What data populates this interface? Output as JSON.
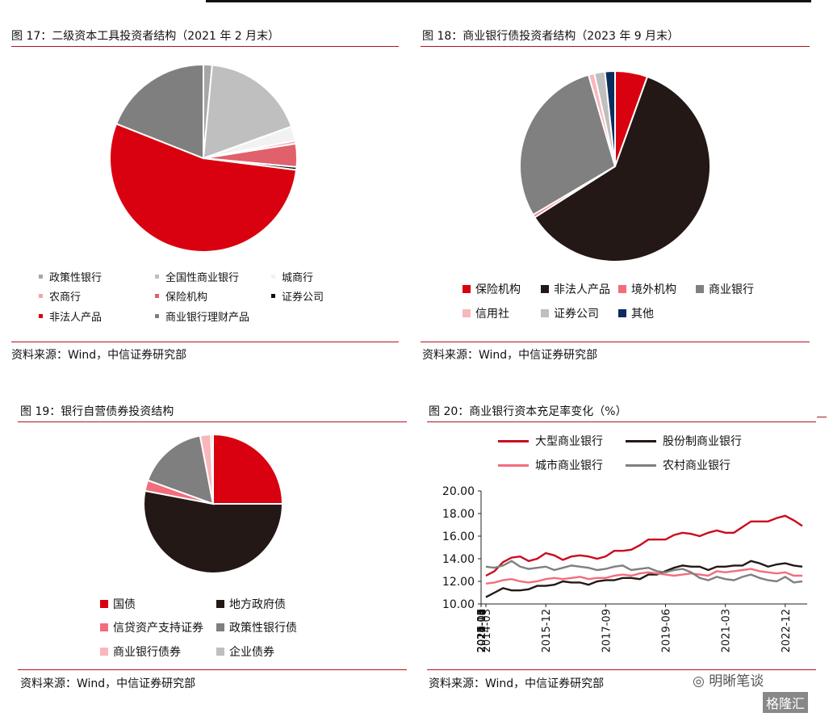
{
  "fig17": {
    "title": "图 17：二级资本工具投资者结构（2021 年 2 月末）",
    "source": "资料来源：Wind，中信证券研究部"
  },
  "fig18": {
    "title": "图 18：商业银行债投资者结构（2023 年 9 月末）",
    "source": "资料来源：Wind，中信证券研究部"
  },
  "fig19": {
    "title": "图 19：银行自营债券投资结构",
    "source": "资料来源：Wind，中信证券研究部"
  },
  "fig20": {
    "title": "图 20：商业银行资本充足率变化（%）",
    "source": "资料来源：Wind，中信证券研究部"
  },
  "watermark": {
    "text1": "明晰笔谈",
    "text2": "格隆汇"
  },
  "chart_data": [
    {
      "type": "pie",
      "categories": [
        "政策性银行",
        "全国性商业银行",
        "城商行",
        "农商行",
        "保险机构",
        "证券公司",
        "非法人产品",
        "商业银行理财产品"
      ],
      "values": [
        1.5,
        18,
        2.5,
        0.5,
        4,
        0.5,
        54,
        19
      ],
      "colors": [
        "#a6a6a6",
        "#bfbfbf",
        "#f2f2f2",
        "#f4a6ad",
        "#e0606c",
        "#111111",
        "#d9000f",
        "#7f7f7f"
      ],
      "legend_position": "bottom"
    },
    {
      "type": "pie",
      "categories": [
        "保险机构",
        "非法人产品",
        "境外机构",
        "商业银行",
        "信用社",
        "证券公司",
        "其他"
      ],
      "values": [
        5.5,
        60.5,
        0.5,
        29,
        1,
        1.8,
        1.7
      ],
      "colors": [
        "#d9000f",
        "#231815",
        "#f26d7d",
        "#808080",
        "#f9b6bc",
        "#bfbfbf",
        "#0b2d5e"
      ],
      "legend_position": "bottom"
    },
    {
      "type": "pie",
      "categories": [
        "国债",
        "地方政府债",
        "信贷资产支持证券",
        "政策性银行债",
        "商业银行债券",
        "企业债券"
      ],
      "values": [
        25,
        53,
        2.5,
        16.5,
        2.5,
        0.5
      ],
      "colors": [
        "#d9000f",
        "#231815",
        "#f26d7d",
        "#7f7f7f",
        "#f9b6bc",
        "#bfbfbf"
      ],
      "legend_position": "bottom"
    },
    {
      "type": "line",
      "x": [
        "2014-03",
        "2014-06",
        "2014-09",
        "2014-12",
        "2015-03",
        "2015-06",
        "2015-09",
        "2015-12",
        "2016-03",
        "2016-06",
        "2016-09",
        "2016-12",
        "2017-03",
        "2017-06",
        "2017-09",
        "2017-12",
        "2018-03",
        "2018-06",
        "2018-09",
        "2018-12",
        "2019-03",
        "2019-06",
        "2019-09",
        "2019-12",
        "2020-03",
        "2020-06",
        "2020-09",
        "2020-12",
        "2021-03",
        "2021-06",
        "2021-09",
        "2021-12",
        "2022-03",
        "2022-06",
        "2022-09",
        "2022-12",
        "2023-03",
        "2023-06"
      ],
      "xticks": [
        "2014-03",
        "2014-10",
        "2015-05",
        "2015-12",
        "2016-07",
        "2017-02",
        "2017-09",
        "2018-04",
        "2018-11",
        "2019-06",
        "2020-01",
        "2020-08",
        "2021-03",
        "2021-10",
        "2022-05",
        "2022-12"
      ],
      "series": [
        {
          "name": "大型商业银行",
          "color": "#cc0a1e",
          "values": [
            12.5,
            12.9,
            13.7,
            14.1,
            14.2,
            13.8,
            14.0,
            14.5,
            14.3,
            13.9,
            14.2,
            14.3,
            14.2,
            14.0,
            14.2,
            14.7,
            14.7,
            14.8,
            15.2,
            15.7,
            15.7,
            15.7,
            16.1,
            16.3,
            16.2,
            16.0,
            16.3,
            16.5,
            16.3,
            16.3,
            16.8,
            17.3,
            17.3,
            17.3,
            17.6,
            17.8,
            17.4,
            16.9
          ]
        },
        {
          "name": "股份制商业银行",
          "color": "#231815",
          "values": [
            10.6,
            11.0,
            11.4,
            11.2,
            11.2,
            11.3,
            11.6,
            11.6,
            11.7,
            12.0,
            11.9,
            11.9,
            11.7,
            12.0,
            12.1,
            12.1,
            12.3,
            12.3,
            12.2,
            12.6,
            12.6,
            12.9,
            13.2,
            13.4,
            13.3,
            13.3,
            13.0,
            13.3,
            13.3,
            13.4,
            13.4,
            13.8,
            13.6,
            13.3,
            13.5,
            13.6,
            13.4,
            13.3
          ]
        },
        {
          "name": "城市商业银行",
          "color": "#f26d7d",
          "values": [
            11.8,
            11.9,
            12.1,
            12.2,
            12.0,
            11.9,
            12.0,
            12.2,
            12.3,
            12.2,
            12.3,
            12.4,
            12.2,
            12.3,
            12.3,
            12.5,
            12.6,
            12.5,
            12.7,
            12.8,
            12.7,
            12.6,
            12.5,
            12.6,
            12.7,
            12.6,
            12.5,
            12.9,
            12.8,
            12.9,
            13.0,
            13.1,
            12.9,
            12.8,
            12.7,
            12.8,
            12.5,
            12.5
          ]
        },
        {
          "name": "农村商业银行",
          "color": "#7f7f7f",
          "values": [
            13.3,
            13.2,
            13.4,
            13.8,
            13.3,
            13.1,
            13.2,
            13.3,
            13.0,
            13.2,
            13.4,
            13.3,
            13.2,
            13.0,
            13.1,
            13.3,
            13.4,
            13.0,
            13.1,
            13.2,
            12.9,
            12.8,
            13.0,
            13.1,
            12.8,
            12.3,
            12.1,
            12.4,
            12.2,
            12.1,
            12.4,
            12.6,
            12.3,
            12.1,
            12.0,
            12.4,
            11.9,
            12.0
          ]
        }
      ],
      "yticks": [
        "10.00",
        "12.00",
        "14.00",
        "16.00",
        "18.00",
        "20.00"
      ],
      "ylim": [
        10,
        20
      ],
      "legend_position": "top"
    }
  ]
}
